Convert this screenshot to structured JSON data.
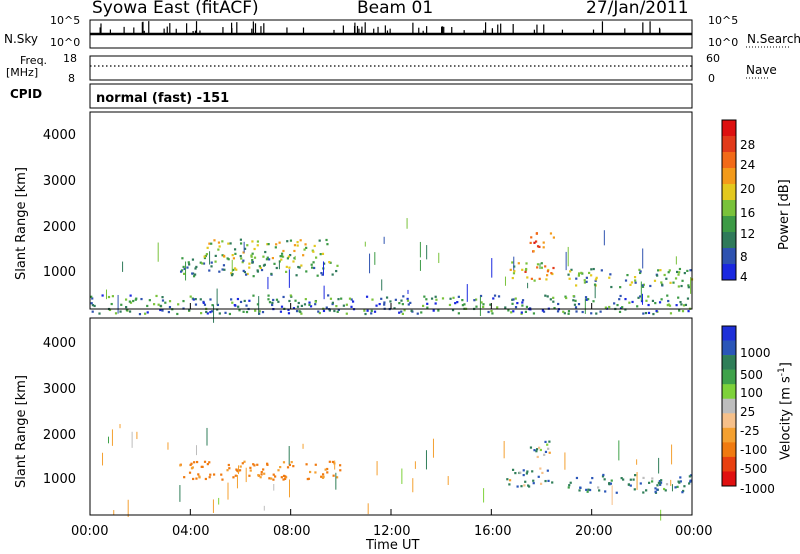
{
  "header": {
    "title": "Syowa East (fitACF)",
    "beam": "Beam 01",
    "date": "27/Jan/2011"
  },
  "noise_panel": {
    "left_label": "N.Sky",
    "right_label": "N.Search",
    "left_ticks": [
      "10^5",
      "10^0"
    ],
    "right_ticks": [
      "10^5",
      "10^0"
    ]
  },
  "freq_panel": {
    "left_label_1": "Freq.",
    "left_label_2": "[MHz]",
    "right_label": "Nave",
    "left_ticks": [
      "18",
      "8"
    ],
    "right_ticks": [
      "60",
      "0"
    ]
  },
  "cpid": {
    "label": "CPID",
    "value": "normal (fast) -151"
  },
  "x_axis": {
    "label": "Time UT",
    "ticks": [
      "00:00",
      "04:00",
      "08:00",
      "12:00",
      "16:00",
      "20:00",
      "00:00"
    ]
  },
  "colors": {
    "power_scale": [
      "#1a28e0",
      "#2e52b0",
      "#2f7a5a",
      "#3c9a45",
      "#79c23a",
      "#e3c81e",
      "#f39a1a",
      "#f26a18",
      "#e23a1a",
      "#dd1010"
    ],
    "velocity_scale": [
      "#1e30d8",
      "#2a56b8",
      "#2f7e58",
      "#3fa24a",
      "#7ed23a",
      "#bdbdbd",
      "#f6c08a",
      "#f4a030",
      "#f07a10",
      "#e84010",
      "#e01010"
    ]
  },
  "chart_data": [
    {
      "type": "heatmap",
      "title": "Power",
      "xlabel": "Time UT",
      "ylabel": "Slant Range [km]",
      "xlim": [
        "00:00",
        "24:00"
      ],
      "ylim": [
        180,
        4600
      ],
      "yticks": [
        "1000",
        "2000",
        "3000",
        "4000"
      ],
      "colorbar": {
        "label": "Power [dB]",
        "ticks": [
          "4",
          "8",
          "12",
          "16",
          "20",
          "24",
          "28"
        ],
        "range": [
          0,
          30
        ]
      },
      "features": [
        {
          "time_start": 3.5,
          "time_end": 10.0,
          "range_km": 1150,
          "value_db": 10
        },
        {
          "time_start": 4.5,
          "time_end": 9.5,
          "range_km": 1550,
          "value_db": 14
        },
        {
          "time_start": 16.5,
          "time_end": 18.5,
          "range_km": 1050,
          "value_db": 18
        },
        {
          "time_start": 17.5,
          "time_end": 18.5,
          "range_km": 1700,
          "value_db": 24
        },
        {
          "time_start": 19.0,
          "time_end": 24.0,
          "range_km": 900,
          "value_db": 10
        },
        {
          "time_start": 0.0,
          "time_end": 24.0,
          "range_km": 300,
          "value_db": 8
        }
      ]
    },
    {
      "type": "heatmap",
      "title": "Velocity",
      "xlabel": "Time UT",
      "ylabel": "Slant Range [km]",
      "xlim": [
        "00:00",
        "24:00"
      ],
      "ylim": [
        180,
        4600
      ],
      "yticks": [
        "1000",
        "2000",
        "3000",
        "4000"
      ],
      "colorbar": {
        "label_main": "Velocity",
        "label_unit": "[m s",
        "label_exp": "-1",
        "label_close": "]",
        "ticks": [
          "1000",
          "500",
          "100",
          "25",
          "-25",
          "-100",
          "-500",
          "-1000"
        ]
      },
      "features": [
        {
          "time_start": 3.5,
          "time_end": 10.0,
          "range_km": 1200,
          "value_ms": -400
        },
        {
          "time_start": 16.5,
          "time_end": 18.5,
          "range_km": 1050,
          "value_ms": 150
        },
        {
          "time_start": 17.5,
          "time_end": 18.5,
          "range_km": 1700,
          "value_ms": 150
        },
        {
          "time_start": 19.0,
          "time_end": 24.0,
          "range_km": 900,
          "value_ms": 200
        }
      ]
    }
  ]
}
